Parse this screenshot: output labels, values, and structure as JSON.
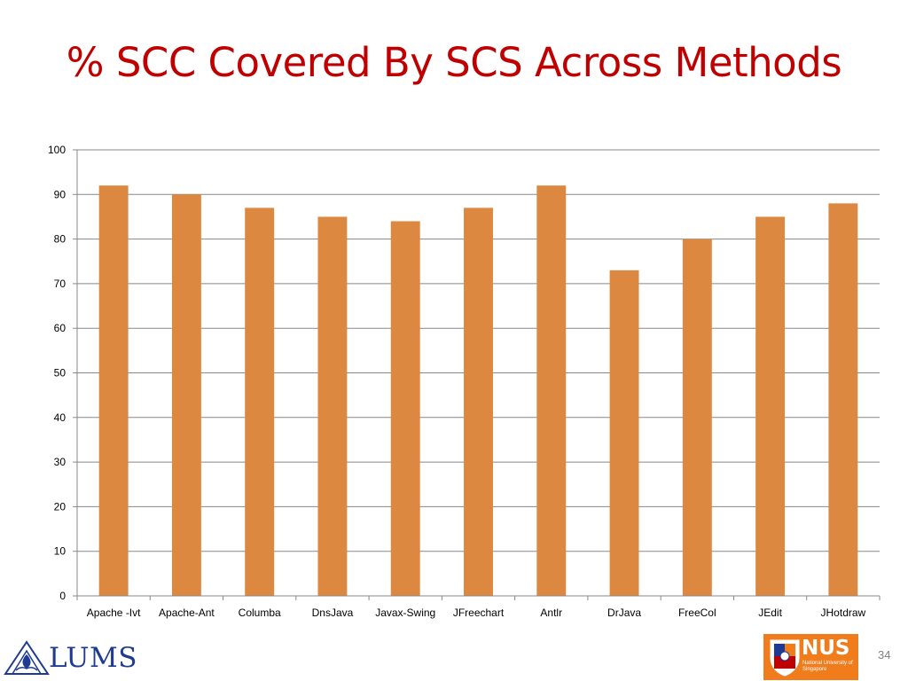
{
  "slide": {
    "title": "% SCC Covered By SCS Across Methods",
    "page_number": "34"
  },
  "logos": {
    "lums": "LUMS",
    "lums_seal": "LUMS",
    "nus": "NUS",
    "nus_subtitle": "National University of Singapore"
  },
  "colors": {
    "title": "#c00000",
    "bar": "#dd8840",
    "grid": "#888888",
    "nus_orange": "#f07c1b",
    "lums_blue": "#1f3a93"
  },
  "chart_data": {
    "type": "bar",
    "categories": [
      "Apache -Ivt",
      "Apache-Ant",
      "Columba",
      "DnsJava",
      "Javax-Swing",
      "JFreechart",
      "Antlr",
      "DrJava",
      "FreeCol",
      "JEdit",
      "JHotdraw"
    ],
    "values": [
      92,
      90,
      87,
      85,
      84,
      87,
      92,
      73,
      80,
      85,
      88
    ],
    "ylim": [
      0,
      100
    ],
    "yticks": [
      0,
      10,
      20,
      30,
      40,
      50,
      60,
      70,
      80,
      90,
      100
    ],
    "grid": true,
    "legend": "none"
  }
}
